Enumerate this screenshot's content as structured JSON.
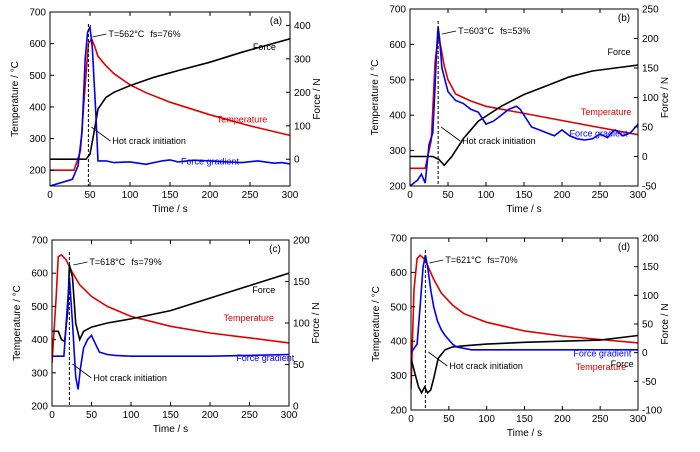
{
  "chart_data": [
    {
      "type": "line",
      "panel": "(a)",
      "xlabel": "Time / s",
      "ylabel": "Temperature / °C",
      "y2label": "Force / N",
      "xlim": [
        0,
        300
      ],
      "ylim": [
        150,
        700
      ],
      "y2lim": [
        -80,
        440
      ],
      "xticks": [
        0,
        50,
        100,
        150,
        200,
        250,
        300
      ],
      "yticks": [
        200,
        300,
        400,
        500,
        600,
        700
      ],
      "y2ticks": [
        0,
        100,
        200,
        300,
        400
      ],
      "annotation": {
        "T_label": "T=562°C",
        "fs_label": "fs=76%",
        "x": 48
      },
      "crack_label": "Hot crack initiation",
      "series": [
        {
          "name": "Temperature",
          "axis": "left",
          "color": "#e00000",
          "label_at": [
            240,
            350
          ],
          "x": [
            0,
            30,
            38,
            44,
            48,
            52,
            56,
            60,
            70,
            80,
            100,
            120,
            150,
            200,
            250,
            300
          ],
          "y": [
            200,
            200,
            260,
            470,
            600,
            615,
            590,
            560,
            530,
            505,
            470,
            445,
            415,
            375,
            340,
            310
          ]
        },
        {
          "name": "Force",
          "axis": "right",
          "color": "#000000",
          "label_at": [
            268,
            580
          ],
          "x": [
            0,
            35,
            45,
            50,
            55,
            60,
            70,
            80,
            100,
            130,
            160,
            200,
            240,
            270,
            300
          ],
          "y": [
            0,
            0,
            0,
            15,
            80,
            150,
            185,
            200,
            220,
            245,
            265,
            290,
            320,
            340,
            360
          ]
        },
        {
          "name": "Force gradient",
          "axis": "right",
          "color": "#0000ee",
          "label_at": [
            200,
            218
          ],
          "x": [
            0,
            28,
            35,
            40,
            44,
            47,
            50,
            53,
            57,
            60,
            70,
            80,
            100,
            120,
            140,
            150,
            160,
            180,
            200,
            220,
            240,
            260,
            280,
            290,
            300
          ],
          "y": [
            -80,
            -60,
            -20,
            80,
            300,
            380,
            395,
            330,
            150,
            -5,
            -5,
            -10,
            -8,
            -15,
            -5,
            -2,
            -8,
            -3,
            -5,
            -8,
            -10,
            -5,
            -12,
            -10,
            -14
          ]
        }
      ]
    },
    {
      "type": "line",
      "panel": "(b)",
      "xlabel": "Time / s",
      "ylabel": "Temperature / °C",
      "y2label": "Force / N",
      "xlim": [
        0,
        300
      ],
      "ylim": [
        200,
        700
      ],
      "y2lim": [
        -50,
        250
      ],
      "xticks": [
        0,
        50,
        100,
        150,
        200,
        250,
        300
      ],
      "yticks": [
        200,
        300,
        400,
        500,
        600,
        700
      ],
      "y2ticks": [
        -50,
        0,
        50,
        100,
        150,
        200,
        250
      ],
      "annotation": {
        "T_label": "T=603°C",
        "fs_label": "fs=53%",
        "x": 37
      },
      "crack_label": "Hot crack initiation",
      "series": [
        {
          "name": "Temperature",
          "axis": "left",
          "color": "#e00000",
          "label_at": [
            258,
            400
          ],
          "x": [
            0,
            20,
            28,
            33,
            37,
            40,
            45,
            50,
            60,
            80,
            100,
            150,
            200,
            250,
            300
          ],
          "y": [
            250,
            250,
            330,
            550,
            620,
            600,
            540,
            500,
            460,
            440,
            425,
            405,
            385,
            365,
            345
          ]
        },
        {
          "name": "Force",
          "axis": "right",
          "color": "#000000",
          "label_at": [
            275,
            570
          ],
          "x": [
            0,
            30,
            38,
            45,
            55,
            70,
            90,
            120,
            150,
            180,
            210,
            240,
            270,
            300
          ],
          "y": [
            0,
            0,
            -5,
            -15,
            0,
            30,
            60,
            85,
            105,
            120,
            135,
            145,
            150,
            155
          ]
        },
        {
          "name": "Force gradient",
          "axis": "right",
          "color": "#0000ee",
          "label_at": [
            248,
            340
          ],
          "x": [
            0,
            10,
            15,
            20,
            25,
            30,
            33,
            35,
            37,
            39,
            42,
            50,
            60,
            70,
            80,
            90,
            100,
            110,
            120,
            130,
            140,
            145,
            150,
            160,
            170,
            180,
            190,
            200,
            210,
            220,
            230,
            240,
            250,
            260,
            265,
            270,
            280,
            290,
            300
          ],
          "y": [
            -50,
            -40,
            -30,
            -45,
            20,
            40,
            120,
            180,
            220,
            200,
            150,
            110,
            95,
            90,
            80,
            75,
            55,
            60,
            70,
            80,
            85,
            80,
            70,
            50,
            45,
            40,
            35,
            45,
            35,
            30,
            28,
            30,
            38,
            32,
            40,
            45,
            35,
            40,
            55
          ]
        }
      ]
    },
    {
      "type": "line",
      "panel": "(c)",
      "xlabel": "Time / s",
      "ylabel": "Temperature / °C",
      "y2label": "Force / N",
      "xlim": [
        0,
        300
      ],
      "ylim": [
        200,
        700
      ],
      "y2lim": [
        0,
        200
      ],
      "xticks": [
        0,
        50,
        100,
        150,
        200,
        250,
        300
      ],
      "yticks": [
        200,
        300,
        400,
        500,
        600,
        700
      ],
      "y2ticks": [
        0,
        50,
        100,
        150,
        200
      ],
      "annotation": {
        "T_label": "T=618°C",
        "fs_label": "fs=79%",
        "x": 22
      },
      "crack_label": "Hot crack initiation",
      "series": [
        {
          "name": "Temperature",
          "axis": "left",
          "color": "#e00000",
          "label_at": [
            249,
            456
          ],
          "x": [
            0,
            5,
            8,
            12,
            18,
            25,
            35,
            50,
            70,
            100,
            150,
            200,
            250,
            300
          ],
          "y": [
            330,
            520,
            650,
            655,
            640,
            605,
            565,
            530,
            500,
            470,
            440,
            420,
            405,
            390
          ]
        },
        {
          "name": "Force",
          "axis": "right",
          "color": "#000000",
          "label_at": [
            268,
            540
          ],
          "x": [
            0,
            5,
            8,
            12,
            16,
            20,
            22,
            26,
            30,
            35,
            40,
            50,
            70,
            100,
            150,
            200,
            250,
            300
          ],
          "y": [
            90,
            90,
            90,
            80,
            78,
            115,
            170,
            155,
            100,
            80,
            90,
            95,
            100,
            105,
            115,
            130,
            145,
            160
          ]
        },
        {
          "name": "Force gradient",
          "axis": "right",
          "color": "#0000ee",
          "label_at": [
            270,
            336
          ],
          "x": [
            0,
            10,
            15,
            18,
            22,
            26,
            30,
            33,
            36,
            40,
            45,
            50,
            55,
            60,
            70,
            80,
            100,
            150,
            200,
            250,
            300
          ],
          "y": [
            60,
            60,
            60,
            100,
            155,
            100,
            35,
            20,
            45,
            70,
            80,
            85,
            75,
            65,
            62,
            61,
            60,
            60,
            60,
            61,
            62
          ]
        }
      ]
    },
    {
      "type": "line",
      "panel": "(d)",
      "xlabel": "Time / s",
      "ylabel": "Temperature / °C",
      "y2label": "Force / N",
      "xlim": [
        0,
        300
      ],
      "ylim": [
        200,
        700
      ],
      "y2lim": [
        -100,
        200
      ],
      "xticks": [
        0,
        50,
        100,
        150,
        200,
        250,
        300
      ],
      "yticks": [
        200,
        300,
        400,
        500,
        600,
        700
      ],
      "y2ticks": [
        -100,
        -50,
        0,
        50,
        100,
        150,
        200
      ],
      "annotation": {
        "T_label": "T=621°C",
        "fs_label": "fs=70%",
        "x": 19
      },
      "crack_label": "Hot crack initiation",
      "series": [
        {
          "name": "Temperature",
          "axis": "left",
          "color": "#e00000",
          "label_at": [
            251,
            316
          ],
          "x": [
            0,
            4,
            8,
            12,
            17,
            22,
            30,
            40,
            55,
            70,
            100,
            150,
            200,
            250,
            300
          ],
          "y": [
            260,
            550,
            640,
            650,
            640,
            620,
            580,
            540,
            505,
            480,
            455,
            430,
            415,
            405,
            395
          ]
        },
        {
          "name": "Force",
          "axis": "right",
          "color": "#000000",
          "label_at": [
            279,
            325
          ],
          "x": [
            0,
            6,
            10,
            14,
            18,
            22,
            26,
            30,
            36,
            45,
            55,
            70,
            100,
            150,
            200,
            250,
            300
          ],
          "y": [
            -10,
            -40,
            -60,
            -70,
            -60,
            -70,
            -65,
            -45,
            -10,
            5,
            10,
            12,
            15,
            18,
            20,
            22,
            30
          ]
        },
        {
          "name": "Force gradient",
          "axis": "right",
          "color": "#0000ee",
          "label_at": [
            253,
            356
          ],
          "x": [
            0,
            8,
            12,
            16,
            19,
            22,
            26,
            30,
            35,
            40,
            45,
            55,
            60,
            80,
            100,
            150,
            200,
            250,
            300
          ],
          "y": [
            0,
            15,
            80,
            150,
            170,
            150,
            110,
            80,
            55,
            40,
            30,
            15,
            10,
            5,
            5,
            5,
            5,
            5,
            5
          ]
        }
      ]
    }
  ]
}
